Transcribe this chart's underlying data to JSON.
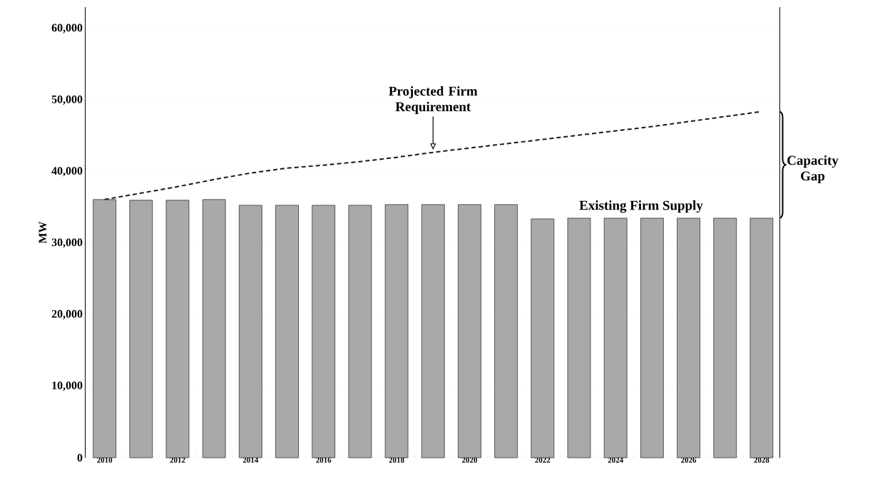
{
  "chart_data": {
    "type": "bar",
    "ylabel": "MW",
    "categories": [
      "2010",
      null,
      "2012",
      null,
      "2014",
      null,
      "2016",
      null,
      "2018",
      null,
      "2020",
      null,
      "2022",
      null,
      "2024",
      null,
      "2026",
      null,
      "2028"
    ],
    "series": [
      {
        "name": "Existing Firm Supply",
        "color": "#a9a9a9",
        "values": [
          36100,
          36000,
          36000,
          36100,
          35300,
          35300,
          35300,
          35300,
          35400,
          35400,
          35400,
          35400,
          33400,
          33500,
          33500,
          33500,
          33500,
          33500,
          33500
        ]
      },
      {
        "name": "Projected Firm Requirement",
        "type": "line",
        "color": "#1a1a1a",
        "line_style": "dashed",
        "values": [
          36100,
          37000,
          37900,
          38900,
          39800,
          40500,
          40900,
          41400,
          42000,
          42700,
          43300,
          43900,
          44500,
          45100,
          45700,
          46300,
          47000,
          47700,
          48400
        ]
      }
    ],
    "ylim": [
      0,
      63000
    ],
    "yticks": [
      {
        "value": 0,
        "label": "0"
      },
      {
        "value": 10000,
        "label": "10,000"
      },
      {
        "value": 20000,
        "label": "20,000"
      },
      {
        "value": 30000,
        "label": "30,000"
      },
      {
        "value": 40000,
        "label": "40,000"
      },
      {
        "value": 50000,
        "label": "50,000"
      },
      {
        "value": 60000,
        "label": "60,000"
      }
    ],
    "grid": "y",
    "annotations": [
      "Capacity Gap"
    ]
  }
}
